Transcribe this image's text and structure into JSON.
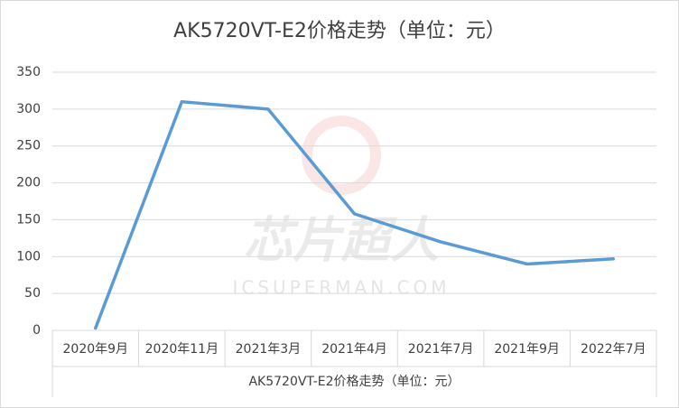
{
  "chart_data": {
    "type": "line",
    "title": "AK5720VT-E2价格走势（单位：元）",
    "x_label": "AK5720VT-E2价格走势（单位：元）",
    "categories": [
      "2020年9月",
      "2020年11月",
      "2021年3月",
      "2021年4月",
      "2021年7月",
      "2021年9月",
      "2022年7月"
    ],
    "series": [
      {
        "name": "AK5720VT-E2价格走势（单位：元）",
        "color": "#5b9bd5",
        "values": [
          3,
          310,
          300,
          158,
          120,
          90,
          97
        ]
      }
    ],
    "ylim": [
      0,
      350
    ],
    "yticks": [
      0,
      50,
      100,
      150,
      200,
      250,
      300,
      350
    ],
    "grid": true,
    "watermark": [
      "芯片超人",
      "ICSUPERMAN.COM"
    ]
  }
}
